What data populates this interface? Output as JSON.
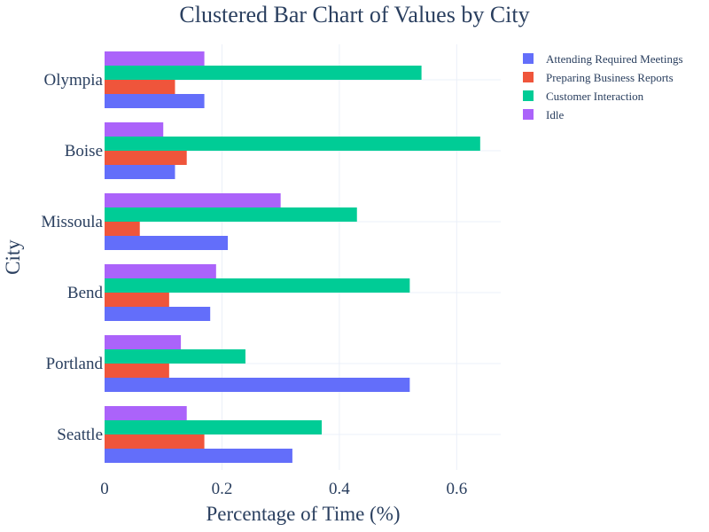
{
  "chart_data": {
    "type": "bar",
    "orientation": "horizontal",
    "barmode": "group",
    "title": "Clustered Bar Chart of Values by City",
    "xlabel": "Percentage of Time (%)",
    "ylabel": "City",
    "xlim": [
      0,
      0.675
    ],
    "xticks": [
      0,
      0.2,
      0.4,
      0.6
    ],
    "xtick_labels": [
      "0",
      "0.2",
      "0.4",
      "0.6"
    ],
    "grid": true,
    "legend_position": "top-right",
    "categories": [
      "Seattle",
      "Portland",
      "Bend",
      "Missoula",
      "Boise",
      "Olympia"
    ],
    "series": [
      {
        "name": "Attending Required Meetings",
        "color": "#636efa",
        "values": [
          0.32,
          0.52,
          0.18,
          0.21,
          0.12,
          0.17
        ]
      },
      {
        "name": "Preparing Business Reports",
        "color": "#ef553b",
        "values": [
          0.17,
          0.11,
          0.11,
          0.06,
          0.14,
          0.12
        ]
      },
      {
        "name": "Customer Interaction",
        "color": "#00cc96",
        "values": [
          0.37,
          0.24,
          0.52,
          0.43,
          0.64,
          0.54
        ]
      },
      {
        "name": "Idle",
        "color": "#ab63fa",
        "values": [
          0.14,
          0.13,
          0.19,
          0.3,
          0.1,
          0.17
        ]
      }
    ]
  }
}
